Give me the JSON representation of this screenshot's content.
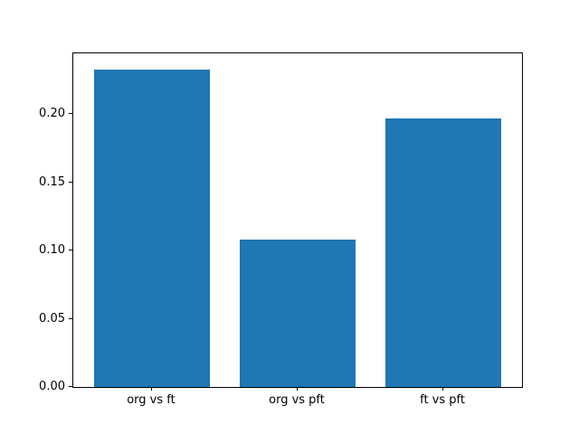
{
  "figure": {
    "background_color": "#ffffff",
    "bar_color": "#1f77b4",
    "spine_color": "#000000",
    "tick_color": "#000000"
  },
  "chart_data": {
    "type": "bar",
    "title": "",
    "xlabel": "",
    "ylabel": "",
    "categories": [
      "org vs ft",
      "org vs pft",
      "ft vs pft"
    ],
    "values": [
      0.233,
      0.108,
      0.197
    ],
    "x_positions": [
      0,
      1,
      2
    ],
    "bar_width": 0.8,
    "xlim": [
      -0.54,
      2.54
    ],
    "ylim": [
      0,
      0.2447
    ],
    "yticks": [
      0.0,
      0.05,
      0.1,
      0.15,
      0.2
    ],
    "ytick_labels": [
      "0.00",
      "0.05",
      "0.10",
      "0.15",
      "0.20"
    ],
    "grid": false,
    "legend": null
  }
}
